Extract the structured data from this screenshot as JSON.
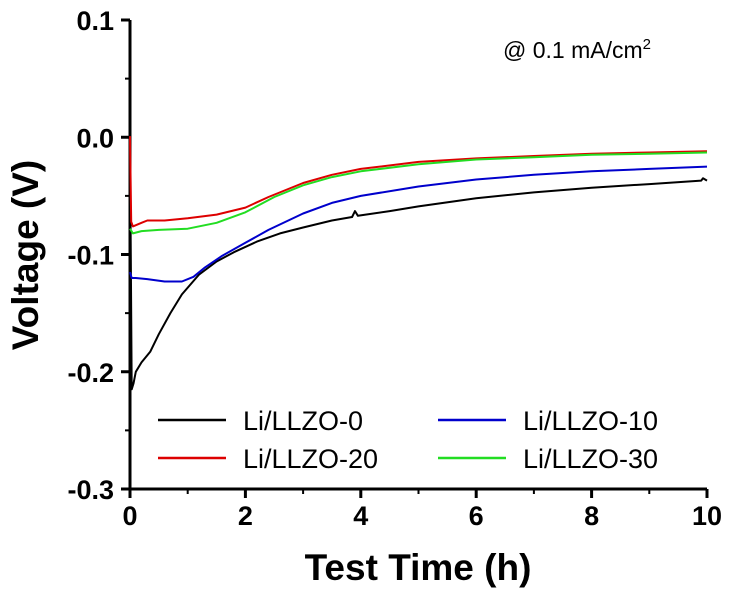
{
  "chart_data": {
    "type": "line",
    "title": "",
    "annotation": "@ 0.1 mA/cm",
    "annotation_superscript": "2",
    "xlabel": "Test Time (h)",
    "ylabel": "Voltage (V)",
    "xlim": [
      0,
      10
    ],
    "ylim": [
      -0.3,
      0.1
    ],
    "x_ticks": [
      "0",
      "2",
      "4",
      "6",
      "8",
      "10"
    ],
    "y_ticks": [
      "0.1",
      "0.0",
      "-0.1",
      "-0.2",
      "-0.3"
    ],
    "grid": false,
    "legend_placement": "bottom",
    "series": [
      {
        "name": "Li/LLZO-0",
        "color": "#000000",
        "points": [
          [
            0,
            -0.001
          ],
          [
            0.03,
            -0.215
          ],
          [
            0.06,
            -0.21
          ],
          [
            0.1,
            -0.2
          ],
          [
            0.2,
            -0.192
          ],
          [
            0.35,
            -0.183
          ],
          [
            0.5,
            -0.168
          ],
          [
            0.7,
            -0.15
          ],
          [
            0.9,
            -0.134
          ],
          [
            1.2,
            -0.117
          ],
          [
            1.5,
            -0.106
          ],
          [
            1.8,
            -0.098
          ],
          [
            2.2,
            -0.089
          ],
          [
            2.6,
            -0.082
          ],
          [
            3.0,
            -0.077
          ],
          [
            3.5,
            -0.071
          ],
          [
            3.85,
            -0.068
          ],
          [
            3.9,
            -0.063
          ],
          [
            3.95,
            -0.067
          ],
          [
            4.5,
            -0.063
          ],
          [
            5.0,
            -0.059
          ],
          [
            6.0,
            -0.052
          ],
          [
            7.0,
            -0.047
          ],
          [
            8.0,
            -0.043
          ],
          [
            9.0,
            -0.04
          ],
          [
            9.9,
            -0.037
          ],
          [
            9.93,
            -0.035
          ],
          [
            10.0,
            -0.037
          ]
        ]
      },
      {
        "name": "Li/LLZO-10",
        "color": "#0000cc",
        "points": [
          [
            0,
            -0.115
          ],
          [
            0.03,
            -0.12
          ],
          [
            0.1,
            -0.12
          ],
          [
            0.3,
            -0.121
          ],
          [
            0.6,
            -0.123
          ],
          [
            0.9,
            -0.123
          ],
          [
            1.1,
            -0.119
          ],
          [
            1.3,
            -0.111
          ],
          [
            1.6,
            -0.101
          ],
          [
            2.0,
            -0.09
          ],
          [
            2.4,
            -0.079
          ],
          [
            3.0,
            -0.065
          ],
          [
            3.5,
            -0.056
          ],
          [
            4.0,
            -0.05
          ],
          [
            5.0,
            -0.042
          ],
          [
            6.0,
            -0.036
          ],
          [
            7.0,
            -0.032
          ],
          [
            8.0,
            -0.029
          ],
          [
            9.0,
            -0.027
          ],
          [
            10.0,
            -0.025
          ]
        ]
      },
      {
        "name": "Li/LLZO-20",
        "color": "#dd0000",
        "points": [
          [
            0,
            0.001
          ],
          [
            0.02,
            -0.072
          ],
          [
            0.05,
            -0.076
          ],
          [
            0.2,
            -0.073
          ],
          [
            0.3,
            -0.071
          ],
          [
            0.6,
            -0.071
          ],
          [
            1.0,
            -0.069
          ],
          [
            1.5,
            -0.066
          ],
          [
            2.0,
            -0.06
          ],
          [
            2.4,
            -0.051
          ],
          [
            3.0,
            -0.039
          ],
          [
            3.5,
            -0.032
          ],
          [
            4.0,
            -0.027
          ],
          [
            5.0,
            -0.021
          ],
          [
            6.0,
            -0.018
          ],
          [
            7.0,
            -0.016
          ],
          [
            8.0,
            -0.014
          ],
          [
            9.0,
            -0.013
          ],
          [
            10.0,
            -0.012
          ]
        ]
      },
      {
        "name": "Li/LLZO-30",
        "color": "#22dd22",
        "points": [
          [
            0,
            -0.078
          ],
          [
            0.05,
            -0.082
          ],
          [
            0.2,
            -0.08
          ],
          [
            0.5,
            -0.079
          ],
          [
            1.0,
            -0.078
          ],
          [
            1.5,
            -0.073
          ],
          [
            2.0,
            -0.064
          ],
          [
            2.5,
            -0.051
          ],
          [
            3.0,
            -0.041
          ],
          [
            3.5,
            -0.034
          ],
          [
            4.0,
            -0.029
          ],
          [
            5.0,
            -0.023
          ],
          [
            6.0,
            -0.019
          ],
          [
            7.0,
            -0.017
          ],
          [
            8.0,
            -0.015
          ],
          [
            9.0,
            -0.014
          ],
          [
            10.0,
            -0.013
          ]
        ]
      }
    ]
  }
}
